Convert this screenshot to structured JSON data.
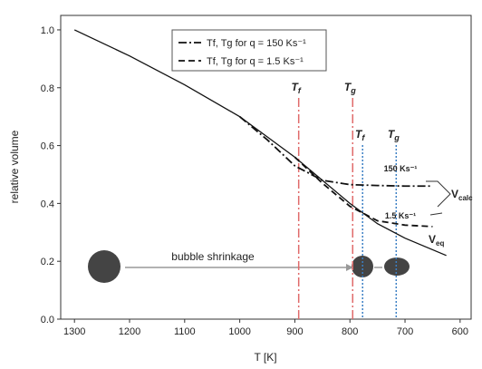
{
  "chart_data": {
    "type": "line",
    "x_label": "T [K]",
    "y_label": "relative volume",
    "xlim": [
      1325,
      580
    ],
    "ylim": [
      0,
      1.05
    ],
    "xticks": [
      1300,
      1200,
      1100,
      1000,
      900,
      800,
      700,
      600
    ],
    "yticks": [
      {
        "value": 0,
        "label": "0.0"
      },
      {
        "value": 0.2,
        "label": "0.2"
      },
      {
        "value": 0.4,
        "label": "0.4"
      },
      {
        "value": 0.6,
        "label": "0.6"
      },
      {
        "value": 0.8,
        "label": "0.8"
      },
      {
        "value": 1,
        "label": "1.0"
      }
    ],
    "series": [
      {
        "name": "Tf, Tg for q = 150 Ks⁻¹",
        "color": "#111111",
        "dash": "9,3,2,3",
        "x": [
          1000,
          950,
          900,
          850,
          800,
          750,
          700,
          650
        ],
        "values": [
          0.7,
          0.62,
          0.53,
          0.48,
          0.465,
          0.462,
          0.46,
          0.46
        ]
      },
      {
        "name": "Tf, Tg for q = 1.5 Ks⁻¹",
        "color": "#111111",
        "dash": "7,4",
        "x": [
          900,
          850,
          800,
          750,
          700,
          650
        ],
        "values": [
          0.56,
          0.47,
          0.39,
          0.34,
          0.325,
          0.32
        ]
      },
      {
        "color": "#111111",
        "dash": "none",
        "x": [
          1300,
          1200,
          1100,
          1000,
          950,
          900,
          850,
          800,
          750,
          700,
          650,
          625
        ],
        "values": [
          1.0,
          0.91,
          0.81,
          0.7,
          0.63,
          0.56,
          0.48,
          0.4,
          0.33,
          0.28,
          0.24,
          0.22
        ]
      }
    ],
    "markers": [
      {
        "label": "T",
        "sub": "f",
        "x": 893,
        "color": "#e06a6a",
        "style": "red"
      },
      {
        "label": "T",
        "sub": "g",
        "x": 795,
        "color": "#e06a6a",
        "style": "red"
      },
      {
        "label": "T",
        "sub": "f",
        "x": 777,
        "color": "#3b7fc4",
        "style": "blue"
      },
      {
        "label": "T",
        "sub": "g",
        "x": 716,
        "color": "#3b7fc4",
        "style": "blue"
      }
    ],
    "annotations": [
      {
        "text": "150 Ks⁻¹"
      },
      {
        "text": "1.5 Ks⁻¹"
      },
      {
        "text": "V",
        "sub": "calc"
      },
      {
        "text": "V",
        "sub": "eq"
      },
      {
        "text": "bubble shrinkage"
      }
    ]
  }
}
